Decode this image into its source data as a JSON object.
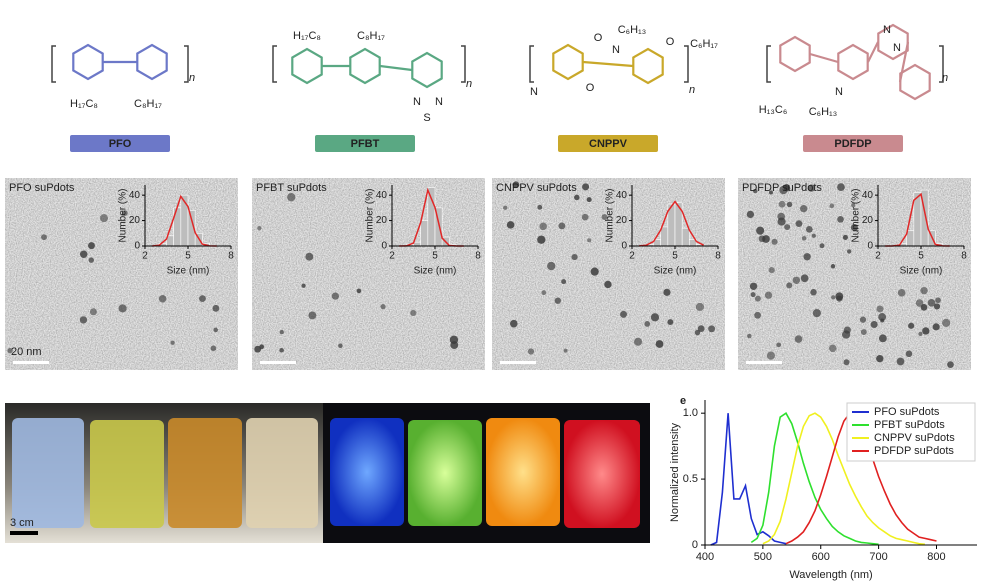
{
  "structures": [
    {
      "name": "PFO",
      "color": "#6c78c8",
      "labels": [
        "n",
        "H₁₇C₈",
        "C₈H₁₇"
      ]
    },
    {
      "name": "PFBT",
      "color": "#5aa883",
      "labels": [
        "H₁₇C₈",
        "C₈H₁₇",
        "n",
        "N",
        "S",
        "N"
      ]
    },
    {
      "name": "CNPPV",
      "color": "#c9a82a",
      "labels": [
        "O",
        "C₆H₁₃",
        "N",
        "O",
        "C₆H₁₇",
        "N",
        "O",
        "n"
      ]
    },
    {
      "name": "PDFDP",
      "color": "#c98a8f",
      "labels": [
        "N",
        "N",
        "N",
        "H₁₃C₆",
        "C₆H₁₃",
        "n"
      ]
    }
  ],
  "tem": [
    {
      "label": "PFO suPdots",
      "scale_bar": "20 nm"
    },
    {
      "label": "PFBT suPdots"
    },
    {
      "label": "CNPPV suPdots"
    },
    {
      "label": "PDFDP suPdots"
    }
  ],
  "photo": {
    "scale_bar": "3 cm"
  },
  "chart_data": [
    {
      "type": "histogram",
      "xlabel": "Size (nm)",
      "ylabel": "Number (%)",
      "color": "#bdbdbd",
      "bins": [
        3,
        3.5,
        4,
        4.5,
        5,
        5.5,
        6,
        6.5,
        7
      ],
      "values": [
        2,
        8,
        30,
        40,
        28,
        10,
        2,
        0
      ],
      "fit": {
        "color": "#e02828",
        "x": [
          2.5,
          3,
          3.5,
          4,
          4.5,
          5,
          5.5,
          6,
          6.5,
          7
        ],
        "values": [
          0,
          0.6,
          5.4,
          22,
          39,
          31,
          10.4,
          1.5,
          0.1,
          0
        ]
      },
      "xlim": [
        2,
        8
      ],
      "ylim": [
        0,
        48
      ],
      "xticks": [
        2,
        5,
        8
      ],
      "yticks": [
        0,
        20,
        40
      ]
    },
    {
      "type": "histogram",
      "xlabel": "Size (nm)",
      "ylabel": "Number (%)",
      "color": "#bdbdbd",
      "bins": [
        3,
        3.5,
        4,
        4.5,
        5,
        5.5,
        6,
        6.5,
        7
      ],
      "values": [
        1,
        3,
        20,
        46,
        30,
        7,
        1,
        0
      ],
      "fit": {
        "color": "#e02828",
        "x": [
          2.5,
          3,
          3.5,
          4,
          4.5,
          5,
          5.5,
          6,
          6.5,
          7
        ],
        "values": [
          0,
          0.1,
          2.3,
          18.6,
          44,
          30.4,
          6.1,
          0.4,
          0,
          0
        ]
      },
      "xlim": [
        2,
        8
      ],
      "ylim": [
        0,
        48
      ],
      "xticks": [
        2,
        5,
        8
      ],
      "yticks": [
        0,
        20,
        40
      ]
    },
    {
      "type": "histogram",
      "xlabel": "Size (nm)",
      "ylabel": "Number (%)",
      "color": "#bdbdbd",
      "bins": [
        3,
        3.5,
        4,
        4.5,
        5,
        5.5,
        6,
        6.5,
        7
      ],
      "values": [
        1,
        5,
        15,
        33,
        34,
        14,
        5,
        1
      ],
      "fit": {
        "color": "#e02828",
        "x": [
          2.5,
          3,
          3.5,
          4,
          4.5,
          5,
          5.5,
          6,
          6.5,
          7
        ],
        "values": [
          0.1,
          0.6,
          3.5,
          12.6,
          27.2,
          35,
          27.2,
          12.6,
          3.5,
          0.6
        ]
      },
      "xlim": [
        2,
        8
      ],
      "ylim": [
        0,
        48
      ],
      "xticks": [
        2,
        5,
        8
      ],
      "yticks": [
        0,
        20,
        40
      ]
    },
    {
      "type": "histogram",
      "xlabel": "Size (nm)",
      "ylabel": "Number (%)",
      "color": "#bdbdbd",
      "bins": [
        3,
        3.5,
        4,
        4.5,
        5,
        5.5,
        6,
        6.5,
        7
      ],
      "values": [
        0,
        2,
        12,
        42,
        44,
        12,
        2,
        0
      ],
      "fit": {
        "color": "#e02828",
        "x": [
          2.5,
          3,
          3.5,
          4,
          4.5,
          5,
          5.5,
          6,
          6.5,
          7
        ],
        "values": [
          0,
          0,
          0.7,
          9.5,
          36,
          40.8,
          13.3,
          1.3,
          0.1,
          0
        ]
      },
      "xlim": [
        2,
        8
      ],
      "ylim": [
        0,
        48
      ],
      "xticks": [
        2,
        5,
        8
      ],
      "yticks": [
        0,
        20,
        40
      ]
    },
    {
      "type": "line",
      "label": "e",
      "xlabel": "Wavelength (nm)",
      "ylabel": "Normalized intensity",
      "x": [
        400,
        410,
        420,
        430,
        440,
        450,
        460,
        470,
        480,
        490,
        500,
        510,
        520,
        530,
        540,
        550,
        560,
        570,
        580,
        590,
        600,
        610,
        620,
        630,
        640,
        650,
        660,
        670,
        680,
        690,
        700,
        710,
        720,
        730,
        740,
        750,
        760,
        770,
        780,
        790,
        800
      ],
      "series": [
        {
          "name": "PFO suPdots",
          "color": "#1f2fd0",
          "values": [
            null,
            0,
            0.02,
            0.4,
            1.0,
            0.35,
            0.35,
            0.45,
            0.2,
            0.08,
            0.1,
            0.07,
            0.03,
            0.02,
            0.01,
            null,
            null,
            null,
            null,
            null,
            null,
            null,
            null,
            null,
            null,
            null,
            null,
            null,
            null,
            null,
            null,
            null,
            null,
            null,
            null,
            null,
            null,
            null,
            null,
            null,
            null
          ]
        },
        {
          "name": "PFBT suPdots",
          "color": "#2ee02e",
          "values": [
            null,
            null,
            null,
            null,
            null,
            null,
            null,
            null,
            0.02,
            0.05,
            0.15,
            0.4,
            0.75,
            0.97,
            1.0,
            0.92,
            0.78,
            0.62,
            0.48,
            0.36,
            0.27,
            0.2,
            0.14,
            0.1,
            0.07,
            0.05,
            0.03,
            0.02,
            0.015,
            0.01,
            0.005,
            null,
            null,
            null,
            null,
            null,
            null,
            null,
            null,
            null,
            null
          ]
        },
        {
          "name": "CNPPV suPdots",
          "color": "#f0f020",
          "values": [
            null,
            null,
            null,
            null,
            null,
            null,
            null,
            null,
            null,
            null,
            0.01,
            0.03,
            0.08,
            0.18,
            0.35,
            0.55,
            0.75,
            0.9,
            0.98,
            1.0,
            0.97,
            0.9,
            0.8,
            0.68,
            0.57,
            0.46,
            0.37,
            0.29,
            0.22,
            0.17,
            0.13,
            0.1,
            0.07,
            0.05,
            0.04,
            0.03,
            0.02,
            0.01,
            0.005,
            null,
            null
          ]
        },
        {
          "name": "PDFDP suPdots",
          "color": "#e02020",
          "values": [
            null,
            null,
            null,
            null,
            null,
            null,
            null,
            null,
            null,
            null,
            null,
            null,
            null,
            null,
            0.01,
            0.03,
            0.06,
            0.1,
            0.17,
            0.26,
            0.38,
            0.52,
            0.67,
            0.82,
            0.94,
            1.0,
            0.98,
            0.9,
            0.78,
            0.65,
            0.52,
            0.41,
            0.31,
            0.23,
            0.17,
            0.12,
            0.09,
            0.06,
            0.05,
            0.04,
            0.03
          ]
        }
      ],
      "xlim": [
        400,
        870
      ],
      "ylim": [
        0,
        1.1
      ],
      "xticks": [
        400,
        500,
        600,
        700,
        800
      ],
      "yticks": [
        0,
        0.5,
        {
          "value": 1,
          "label": "1.0"
        }
      ],
      "legend": "upper right"
    }
  ]
}
